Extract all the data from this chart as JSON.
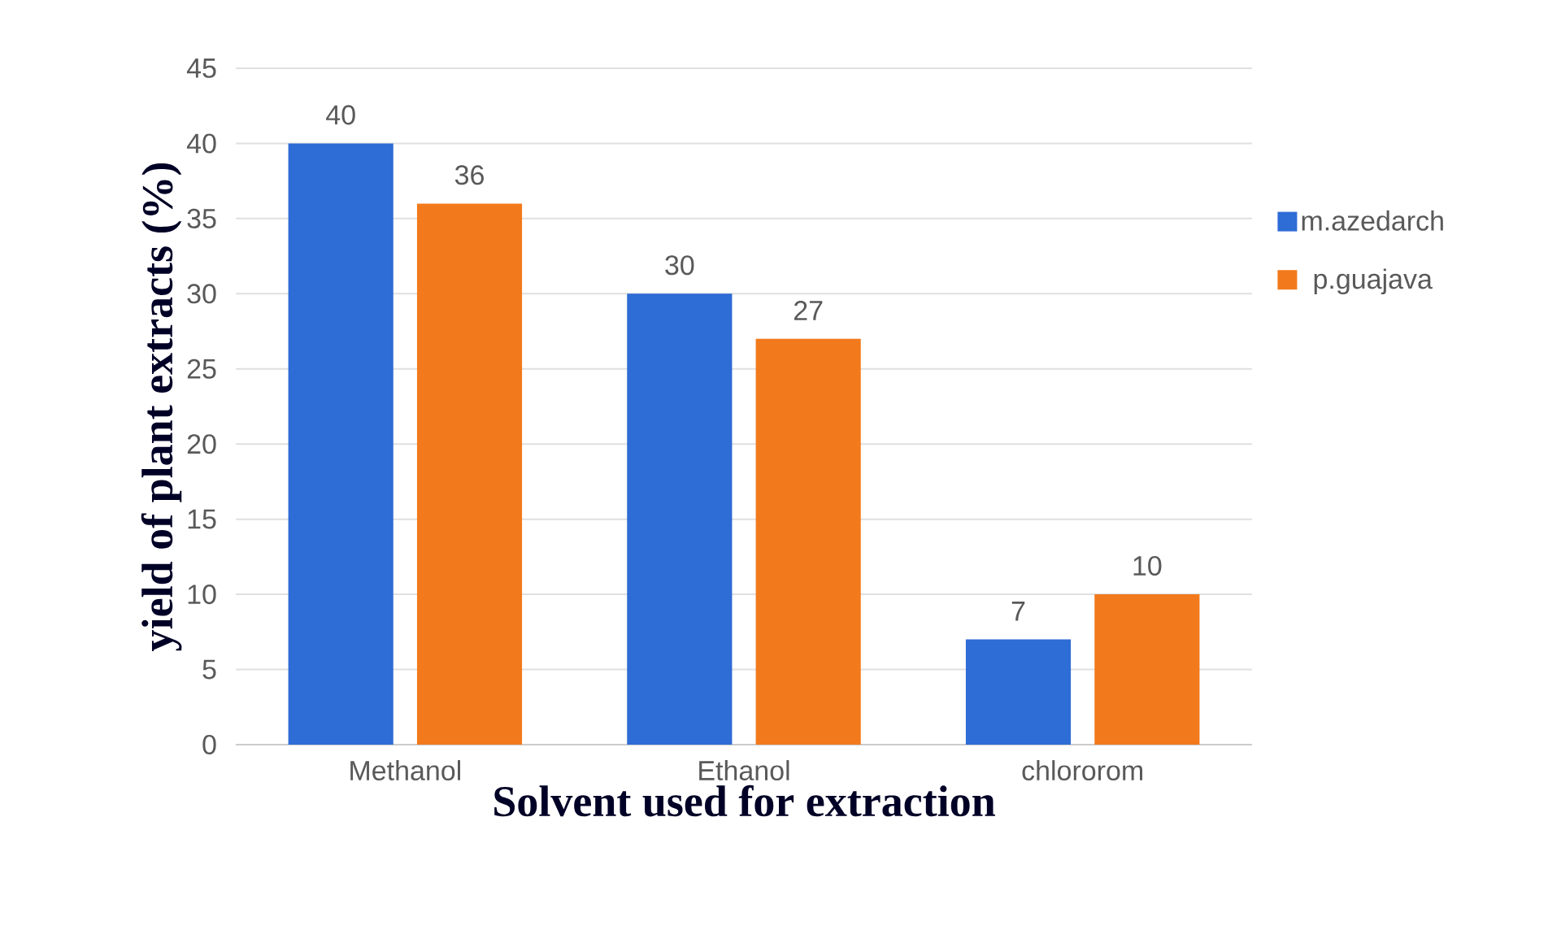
{
  "chart_data": {
    "type": "bar",
    "xlabel": "Solvent used for extraction",
    "ylabel": "yield of plant extracts (%)",
    "categories": [
      "Methanol",
      "Ethanol",
      "chlororom"
    ],
    "series": [
      {
        "name": "m.azedarch",
        "color": "#2e6cd6",
        "values": [
          40,
          30,
          7
        ]
      },
      {
        "name": "p.guajava",
        "color": "#f27a1c",
        "values": [
          36,
          27,
          10
        ]
      }
    ],
    "ylim": [
      0,
      45
    ],
    "yticks": [
      0,
      5,
      10,
      15,
      20,
      25,
      30,
      35,
      40,
      45
    ],
    "grid": "y",
    "legend": "right",
    "data_labels": true
  }
}
